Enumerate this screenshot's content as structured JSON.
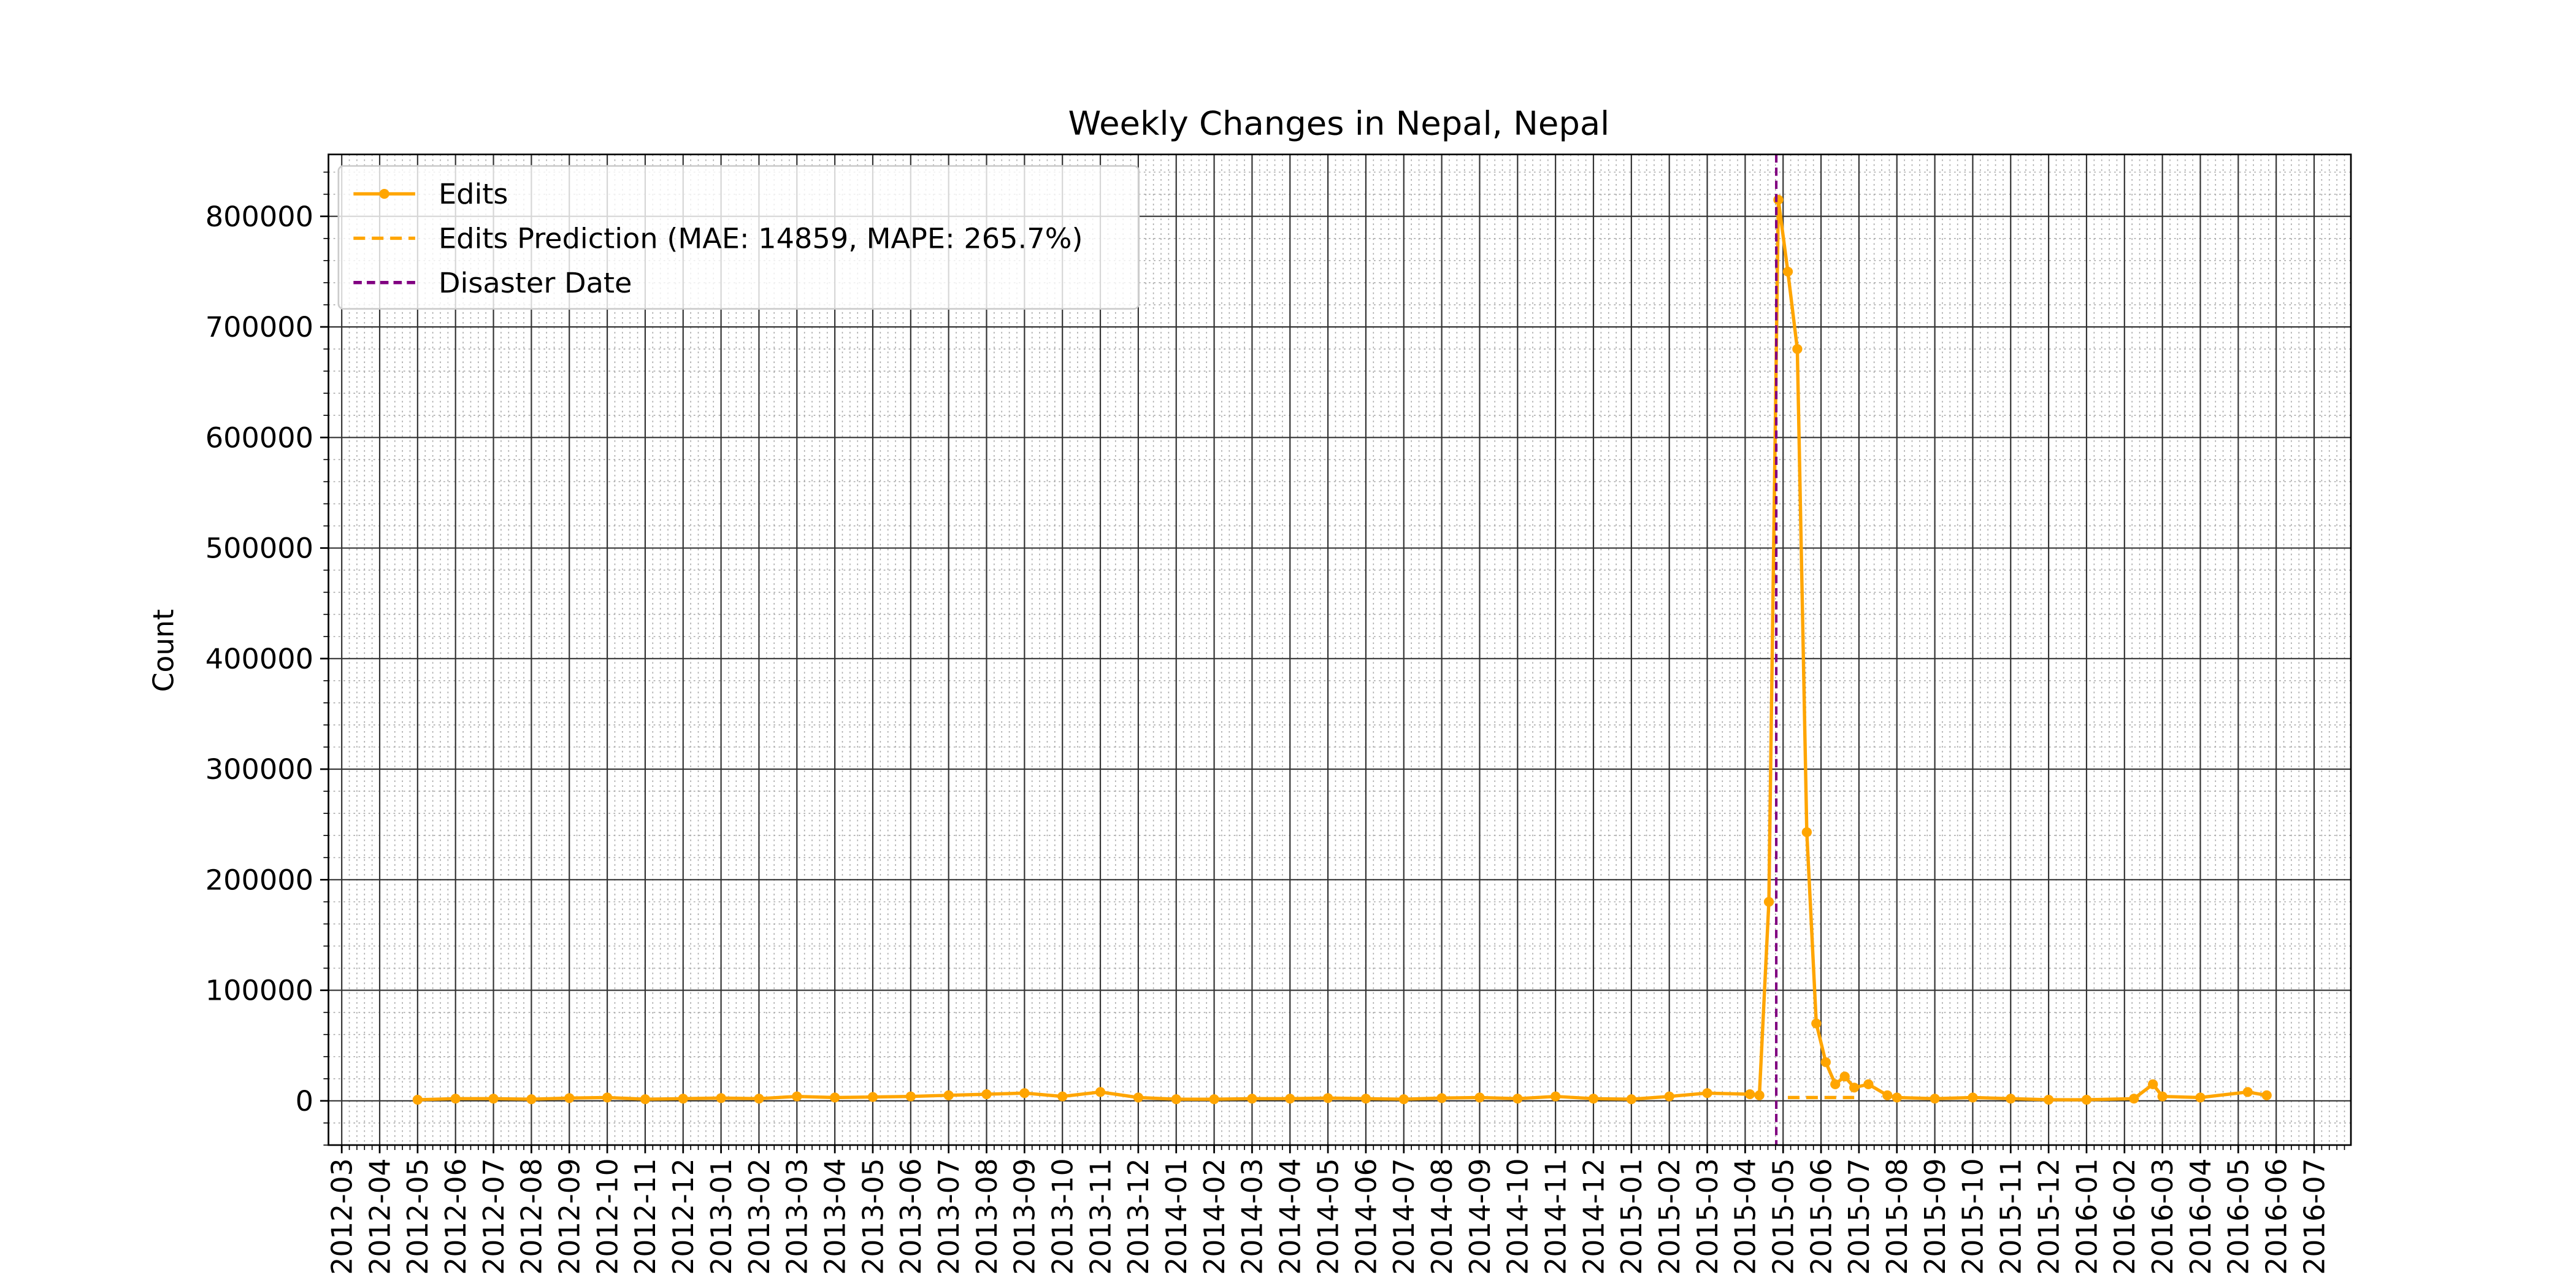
{
  "chart_data": {
    "type": "line",
    "title": "Weekly Changes in Nepal, Nepal",
    "ylabel": "Count",
    "xticks": [
      "2012-03",
      "2012-04",
      "2012-05",
      "2012-06",
      "2012-07",
      "2012-08",
      "2012-09",
      "2012-10",
      "2012-11",
      "2012-12",
      "2013-01",
      "2013-02",
      "2013-03",
      "2013-04",
      "2013-05",
      "2013-06",
      "2013-07",
      "2013-08",
      "2013-09",
      "2013-10",
      "2013-11",
      "2013-12",
      "2014-01",
      "2014-02",
      "2014-03",
      "2014-04",
      "2014-05",
      "2014-06",
      "2014-07",
      "2014-08",
      "2014-09",
      "2014-10",
      "2014-11",
      "2014-12",
      "2015-01",
      "2015-02",
      "2015-03",
      "2015-04",
      "2015-05",
      "2015-06",
      "2015-07",
      "2015-08",
      "2015-09",
      "2015-10",
      "2015-11",
      "2015-12",
      "2016-01",
      "2016-02",
      "2016-03",
      "2016-04",
      "2016-05",
      "2016-06",
      "2016-07"
    ],
    "xlim": [
      "2012-03",
      "2016-07"
    ],
    "ylim": [
      -40000,
      856000
    ],
    "yticks": [
      0,
      100000,
      200000,
      300000,
      400000,
      500000,
      600000,
      700000,
      800000
    ],
    "grid": true,
    "legend": "upper left",
    "series": [
      {
        "name": "Edits",
        "color": "#ffa500",
        "style": "solid-markers",
        "x": [
          "2012-05",
          "2012-06",
          "2012-07",
          "2012-08",
          "2012-09",
          "2012-10",
          "2012-11",
          "2012-12",
          "2013-01",
          "2013-02",
          "2013-03",
          "2013-04",
          "2013-05",
          "2013-06",
          "2013-07",
          "2013-08",
          "2013-09",
          "2013-10",
          "2013-11",
          "2013-12",
          "2014-01",
          "2014-02",
          "2014-03",
          "2014-04",
          "2014-05",
          "2014-06",
          "2014-07",
          "2014-08",
          "2014-09",
          "2014-10",
          "2014-11",
          "2014-12",
          "2015-01",
          "2015-02",
          "2015-03",
          "2015-04",
          "2015-04",
          "2015-04",
          "2015-04",
          "2015-05",
          "2015-05",
          "2015-05",
          "2015-05",
          "2015-06",
          "2015-06",
          "2015-06",
          "2015-06",
          "2015-07",
          "2015-07",
          "2015-08",
          "2015-09",
          "2015-10",
          "2015-11",
          "2015-12",
          "2016-01",
          "2016-02",
          "2016-02",
          "2016-03",
          "2016-04",
          "2016-05",
          "2016-05"
        ],
        "values": [
          1000,
          2000,
          2000,
          1500,
          2500,
          3000,
          1500,
          2000,
          2500,
          2000,
          4000,
          3000,
          3500,
          4000,
          5000,
          6000,
          7000,
          4000,
          8000,
          3000,
          1500,
          1500,
          2000,
          2000,
          2500,
          2000,
          1500,
          2500,
          3000,
          2000,
          4000,
          2000,
          1500,
          4000,
          7000,
          6000,
          5000,
          180000,
          815000,
          750000,
          680000,
          243000,
          70000,
          35000,
          15000,
          22000,
          12000,
          15000,
          5000,
          3000,
          2000,
          3000,
          2000,
          1000,
          1000,
          2000,
          15000,
          4000,
          3000,
          8000,
          5000
        ]
      },
      {
        "name": "Edits Prediction (MAE: 14859, MAPE: 265.7%)",
        "color": "#ffa500",
        "style": "dashed",
        "x": [
          "2015-05",
          "2015-05",
          "2015-05",
          "2015-05",
          "2015-06",
          "2015-06",
          "2015-06",
          "2015-06"
        ],
        "values": [
          3000,
          3000,
          3000,
          3000,
          3000,
          3000,
          3000,
          3000
        ]
      }
    ],
    "disaster": {
      "name": "Disaster Date",
      "x": "2015-04",
      "color": "#800080"
    }
  }
}
